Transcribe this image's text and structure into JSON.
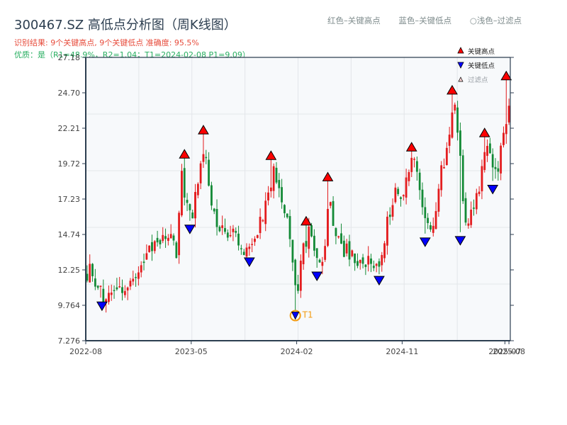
{
  "header": {
    "title": "300467.SZ 高低点分析图（周K线图）",
    "result_line": "识别结果: 9个关键高点, 9个关键低点  准确度: 95.5%",
    "quality_line": "优质：是（R1=48.9%，R2=1.04；T1=2024-02-08 P1=9.09）"
  },
  "top_legend": {
    "red_label": "红色–关键高点",
    "blue_label": "蓝色–关键低点",
    "light_label": "○浅色–过滤点"
  },
  "colors": {
    "up": "#e31a1c",
    "down": "#138a36",
    "high_marker": "#ff0000",
    "low_marker": "#0000ff",
    "t1_ring": "#f39c12",
    "plot_bg": "#f7f9fb",
    "grid": "#e3e6ea",
    "axis": "#2c3e50"
  },
  "chart_data": {
    "type": "candlestick",
    "title": "300467.SZ 高低点分析图（周K线图）",
    "xlabel": "",
    "ylabel": "",
    "ylim": [
      7.276,
      27.18
    ],
    "y_ticks": [
      "7.276",
      "9.764",
      "12.25",
      "14.74",
      "17.23",
      "19.72",
      "22.21",
      "24.70",
      "27.18"
    ],
    "x_ticks": [
      {
        "label": "2022-08",
        "week": 0
      },
      {
        "label": "2023-05",
        "week": 39
      },
      {
        "label": "2024-02",
        "week": 78
      },
      {
        "label": "2024-11",
        "week": 117
      },
      {
        "label": "2025-07",
        "week": 155
      },
      {
        "label": "2025-08",
        "week": 156.5
      }
    ],
    "x_range_weeks": [
      0,
      157
    ],
    "grid": true,
    "legend": {
      "position": "upper right",
      "entries": [
        {
          "label": "关键高点",
          "marker": "triangle-up",
          "color": "#ff0000"
        },
        {
          "label": "关键低点",
          "marker": "triangle-down",
          "color": "#0000ff"
        },
        {
          "label": "过滤点",
          "marker": "triangle-up-light",
          "color": "#f8d0d0"
        }
      ]
    },
    "path_anchors": [
      [
        0,
        12.0
      ],
      [
        2,
        12.4
      ],
      [
        6,
        10.3
      ],
      [
        9,
        10.6
      ],
      [
        12,
        11.3
      ],
      [
        16,
        11.0
      ],
      [
        20,
        12.3
      ],
      [
        24,
        13.6
      ],
      [
        28,
        14.0
      ],
      [
        32,
        14.8
      ],
      [
        34,
        13.0
      ],
      [
        35,
        19.8
      ],
      [
        37,
        17.0
      ],
      [
        39,
        15.7
      ],
      [
        41,
        18.0
      ],
      [
        44,
        21.5
      ],
      [
        46,
        17.5
      ],
      [
        48,
        15.5
      ],
      [
        52,
        14.8
      ],
      [
        56,
        14.5
      ],
      [
        60,
        13.5
      ],
      [
        62,
        14.2
      ],
      [
        65,
        16.0
      ],
      [
        68,
        17.5
      ],
      [
        69,
        19.6
      ],
      [
        72,
        17.0
      ],
      [
        75,
        15.8
      ],
      [
        77,
        12.0
      ],
      [
        78,
        9.6
      ],
      [
        80,
        13.5
      ],
      [
        83,
        15.0
      ],
      [
        86,
        12.4
      ],
      [
        89,
        14.0
      ],
      [
        90,
        18.0
      ],
      [
        92,
        15.2
      ],
      [
        95,
        13.8
      ],
      [
        100,
        13.0
      ],
      [
        105,
        12.6
      ],
      [
        109,
        12.0
      ],
      [
        111,
        15.5
      ],
      [
        114,
        17.5
      ],
      [
        117,
        17.2
      ],
      [
        121,
        20.2
      ],
      [
        124,
        17.0
      ],
      [
        126,
        14.8
      ],
      [
        129,
        16.0
      ],
      [
        131,
        19.0
      ],
      [
        134,
        20.5
      ],
      [
        136,
        23.8
      ],
      [
        138,
        21.8
      ],
      [
        140,
        14.8
      ],
      [
        142,
        16.5
      ],
      [
        145,
        17.5
      ],
      [
        148,
        20.5
      ],
      [
        149,
        21.2
      ],
      [
        152,
        18.5
      ],
      [
        154,
        21.0
      ],
      [
        156,
        23.5
      ],
      [
        157,
        23.8
      ]
    ],
    "key_highs": [
      {
        "week": 36.5,
        "price": 20.1
      },
      {
        "week": 43.5,
        "price": 21.8
      },
      {
        "week": 68.5,
        "price": 20.0
      },
      {
        "week": 81.5,
        "price": 15.4
      },
      {
        "week": 89.5,
        "price": 18.5
      },
      {
        "week": 120.5,
        "price": 20.6
      },
      {
        "week": 135.5,
        "price": 24.6
      },
      {
        "week": 147.5,
        "price": 21.6
      },
      {
        "week": 155.5,
        "price": 25.6
      }
    ],
    "key_lows": [
      {
        "week": 6,
        "price": 10.0
      },
      {
        "week": 38.5,
        "price": 15.4
      },
      {
        "week": 60.5,
        "price": 13.1
      },
      {
        "week": 77.5,
        "price": 9.09,
        "label": "T1",
        "date": "2024-02-08"
      },
      {
        "week": 85.5,
        "price": 12.1
      },
      {
        "week": 108.5,
        "price": 11.8
      },
      {
        "week": 125.5,
        "price": 14.5
      },
      {
        "week": 138.5,
        "price": 14.6
      },
      {
        "week": 150.5,
        "price": 18.2
      }
    ],
    "summary": {
      "key_high_count": 9,
      "key_low_count": 9,
      "accuracy": "95.5%",
      "quality": "是",
      "R1": "48.9%",
      "R2": "1.04",
      "T1": "2024-02-08",
      "P1": "9.09"
    }
  }
}
